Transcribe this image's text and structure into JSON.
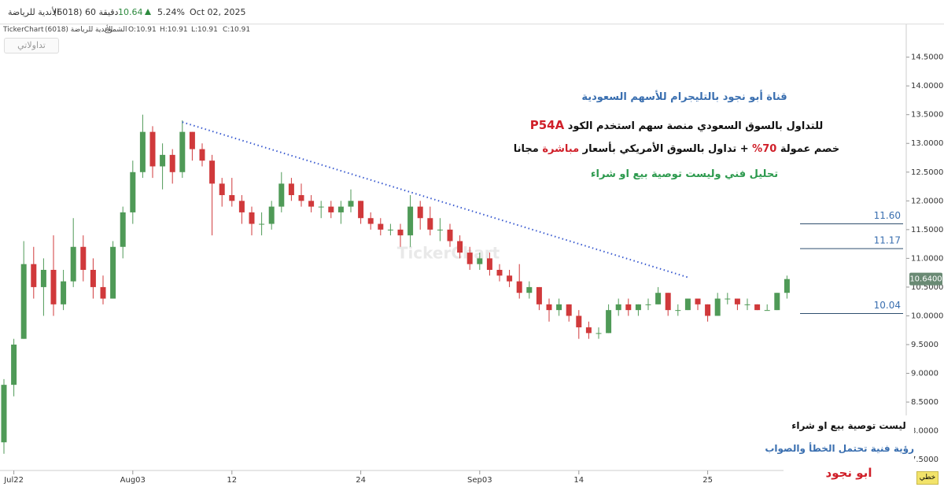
{
  "header": {
    "name": "الأندية للرياضة",
    "code": "(6018)",
    "interval": "60 دقيقة",
    "price": "10.64",
    "change": "5.24%",
    "date": "Oct 02, 2025",
    "source": "TickerChart",
    "instrument": "الأندية للرياضة (6018)",
    "style": "الشموع",
    "ohlc": [
      "O:10.91",
      "H:10.91",
      "L:10.91",
      "C:10.91"
    ],
    "button": "تداولاتي",
    "watermark": "TickerChart",
    "line_type": "خطي"
  },
  "annotations": {
    "line1": "قناة أبو نجود بالتليجرام للأسهم السعودية",
    "line2": {
      "text": "للتداول بالسوق السعودي منصة سهم استخدم الكود",
      "code": "P54A"
    },
    "line3": [
      "خصم عمولة",
      "70%",
      "+ تداول بالسوق الأمريكي بأسعار",
      "مباشرة",
      "مجانا"
    ],
    "line4": "تحليل فني وليست توصية بيع او شراء",
    "box": [
      "ليست توصية بيع او شراء",
      "رؤية فنية تحتمل الخطأ والصواب",
      "ابو نجود"
    ]
  },
  "chart_data": {
    "type": "candlestick",
    "up_color": "#4f9a57",
    "down_color": "#d0393b",
    "categories": [
      null,
      "Jul22",
      null,
      null,
      null,
      null,
      null,
      null,
      null,
      null,
      null,
      null,
      null,
      "Aug03",
      null,
      null,
      null,
      null,
      null,
      null,
      null,
      null,
      null,
      "12",
      null,
      null,
      null,
      null,
      null,
      null,
      null,
      null,
      null,
      null,
      null,
      null,
      "24",
      null,
      null,
      null,
      null,
      null,
      null,
      null,
      null,
      null,
      null,
      null,
      "Sep03",
      null,
      null,
      null,
      null,
      null,
      null,
      null,
      null,
      null,
      "14",
      null,
      null,
      null,
      null,
      null,
      null,
      null,
      null,
      null,
      null,
      null,
      null,
      "25",
      null,
      null,
      null,
      null,
      null,
      null,
      null,
      null
    ],
    "open": [
      7.8,
      8.8,
      9.6,
      10.9,
      10.5,
      10.8,
      10.2,
      10.6,
      11.2,
      10.8,
      10.5,
      10.3,
      11.2,
      11.8,
      12.5,
      13.2,
      12.6,
      12.8,
      12.5,
      13.2,
      12.9,
      12.7,
      12.3,
      12.1,
      12.0,
      11.8,
      11.6,
      11.6,
      11.9,
      12.3,
      12.1,
      12.0,
      11.9,
      11.9,
      11.8,
      11.9,
      12.0,
      11.7,
      11.6,
      11.5,
      11.5,
      11.4,
      11.9,
      11.7,
      11.5,
      11.5,
      11.3,
      11.1,
      10.9,
      11.0,
      10.8,
      10.7,
      10.6,
      10.4,
      10.5,
      10.2,
      10.1,
      10.2,
      10.0,
      9.8,
      9.7,
      9.7,
      10.1,
      10.2,
      10.1,
      10.2,
      10.2,
      10.4,
      10.1,
      10.1,
      10.3,
      10.2,
      10.0,
      10.3,
      10.3,
      10.2,
      10.2,
      10.1,
      10.1,
      10.4
    ],
    "high": [
      8.9,
      9.6,
      11.3,
      11.2,
      11.0,
      11.4,
      10.8,
      11.7,
      11.4,
      11.0,
      10.7,
      11.3,
      11.9,
      12.7,
      13.5,
      13.3,
      13.0,
      12.9,
      13.4,
      13.2,
      13.0,
      12.8,
      12.4,
      12.4,
      12.1,
      11.9,
      11.8,
      12.0,
      12.5,
      12.4,
      12.3,
      12.1,
      12.0,
      12.0,
      12.0,
      12.2,
      12.0,
      11.8,
      11.7,
      11.6,
      11.6,
      12.1,
      12.0,
      11.9,
      11.7,
      11.6,
      11.4,
      11.2,
      11.1,
      11.1,
      10.9,
      10.8,
      10.9,
      10.6,
      10.5,
      10.3,
      10.3,
      10.2,
      10.1,
      9.9,
      9.8,
      10.2,
      10.3,
      10.3,
      10.2,
      10.3,
      10.5,
      10.4,
      10.2,
      10.3,
      10.3,
      10.2,
      10.4,
      10.4,
      10.3,
      10.3,
      10.2,
      10.2,
      10.4,
      10.7
    ],
    "low": [
      7.6,
      8.6,
      9.6,
      10.3,
      10.0,
      10.0,
      10.1,
      10.5,
      10.6,
      10.3,
      10.2,
      10.3,
      11.0,
      11.6,
      12.4,
      12.4,
      12.2,
      12.3,
      12.4,
      12.7,
      12.6,
      11.4,
      11.9,
      11.9,
      11.6,
      11.4,
      11.4,
      11.5,
      11.8,
      12.0,
      11.9,
      11.8,
      11.7,
      11.7,
      11.6,
      11.8,
      11.6,
      11.5,
      11.4,
      11.4,
      11.2,
      11.2,
      11.5,
      11.4,
      11.3,
      11.2,
      11.0,
      10.8,
      10.8,
      10.7,
      10.6,
      10.5,
      10.3,
      10.3,
      10.1,
      9.9,
      10.0,
      9.9,
      9.6,
      9.6,
      9.6,
      9.7,
      10.0,
      10.0,
      10.0,
      10.1,
      10.2,
      10.0,
      10.0,
      10.1,
      10.1,
      9.9,
      10.0,
      10.2,
      10.1,
      10.1,
      10.1,
      10.1,
      10.1,
      10.3
    ],
    "close": [
      8.8,
      9.5,
      10.9,
      10.5,
      10.8,
      10.2,
      10.6,
      11.2,
      10.8,
      10.5,
      10.3,
      11.2,
      11.8,
      12.5,
      13.2,
      12.6,
      12.8,
      12.5,
      13.2,
      12.9,
      12.7,
      12.3,
      12.1,
      12.0,
      11.8,
      11.6,
      11.6,
      11.9,
      12.3,
      12.1,
      12.0,
      11.9,
      11.9,
      11.8,
      11.9,
      12.0,
      11.7,
      11.6,
      11.5,
      11.5,
      11.4,
      11.9,
      11.7,
      11.5,
      11.5,
      11.3,
      11.1,
      10.9,
      11.0,
      10.8,
      10.7,
      10.6,
      10.4,
      10.5,
      10.2,
      10.1,
      10.2,
      10.0,
      9.8,
      9.7,
      9.7,
      10.1,
      10.2,
      10.1,
      10.2,
      10.2,
      10.4,
      10.1,
      10.1,
      10.3,
      10.2,
      10.0,
      10.3,
      10.3,
      10.2,
      10.2,
      10.1,
      10.1,
      10.4,
      10.64
    ],
    "ylim": [
      7.31,
      15.07
    ],
    "yticks": [
      {
        "value": 7.5,
        "label": "7.5000"
      },
      {
        "value": 8.0,
        "label": "8.0000"
      },
      {
        "value": 8.5,
        "label": "8.5000"
      },
      {
        "value": 9.0,
        "label": "9.0000"
      },
      {
        "value": 9.5,
        "label": "9.5000"
      },
      {
        "value": 10.0,
        "label": "10.0000"
      },
      {
        "value": 10.5,
        "label": "10.5000"
      },
      {
        "value": 11.0,
        "label": "11.0000"
      },
      {
        "value": 11.5,
        "label": "11.5000"
      },
      {
        "value": 12.0,
        "label": "12.0000"
      },
      {
        "value": 12.5,
        "label": "12.5000"
      },
      {
        "value": 13.0,
        "label": "13.0000"
      },
      {
        "value": 13.5,
        "label": "13.5000"
      },
      {
        "value": 14.0,
        "label": "14.0000"
      },
      {
        "value": 14.5,
        "label": "14.5000"
      }
    ],
    "levels": [
      {
        "value": 11.6,
        "label": "11.60"
      },
      {
        "value": 11.17,
        "label": "11.17"
      },
      {
        "value": 10.04,
        "label": "10.04"
      }
    ],
    "level_color": "#2f4f6f",
    "last_price": {
      "value": 10.64,
      "label": "10.6400"
    },
    "last_price_color": "#6a8a74",
    "trendline": {
      "values": [
        13.37,
        10.67
      ],
      "color": "#3a5bd0"
    }
  }
}
